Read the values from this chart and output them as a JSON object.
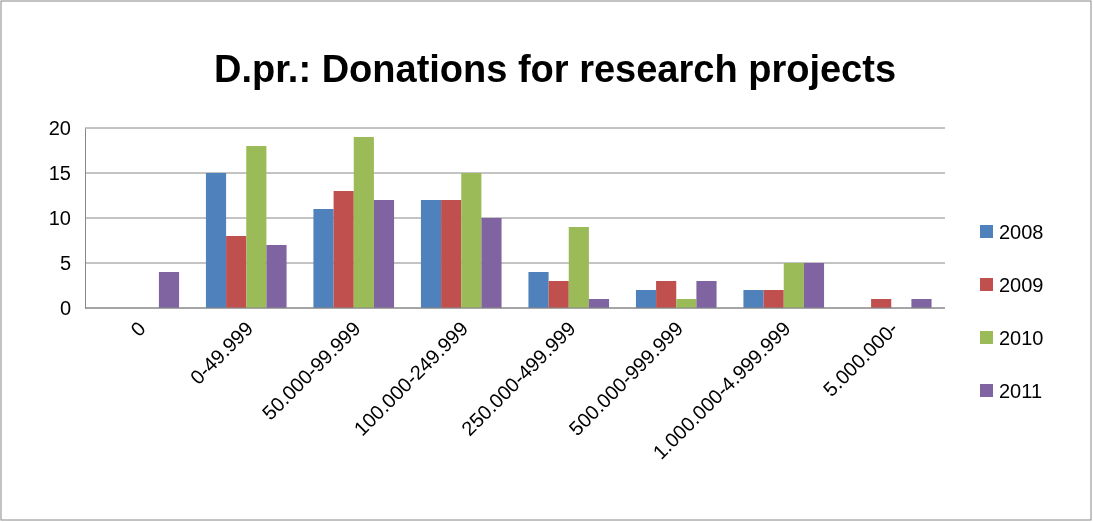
{
  "chart_data": {
    "type": "bar",
    "title": "D.pr.: Donations for research projects",
    "categories": [
      "0",
      "0-49.999",
      "50.000-99.999",
      "100.000-249.999",
      "250.000-499.999",
      "500.000-999.999",
      "1.000.000-4.999.999",
      "5.000.000-"
    ],
    "series": [
      {
        "name": "2008",
        "color": "#4f81bd",
        "values": [
          0,
          15,
          11,
          12,
          4,
          2,
          2,
          0
        ]
      },
      {
        "name": "2009",
        "color": "#c0504d",
        "values": [
          0,
          8,
          13,
          12,
          3,
          3,
          2,
          1
        ]
      },
      {
        "name": "2010",
        "color": "#9bbb59",
        "values": [
          0,
          18,
          19,
          15,
          9,
          1,
          5,
          0
        ]
      },
      {
        "name": "2011",
        "color": "#8064a2",
        "values": [
          4,
          7,
          12,
          10,
          1,
          3,
          5,
          1
        ]
      }
    ],
    "ylim": [
      0,
      20
    ],
    "yticks": [
      0,
      5,
      10,
      15,
      20
    ],
    "grid": "y",
    "legend": "right"
  }
}
